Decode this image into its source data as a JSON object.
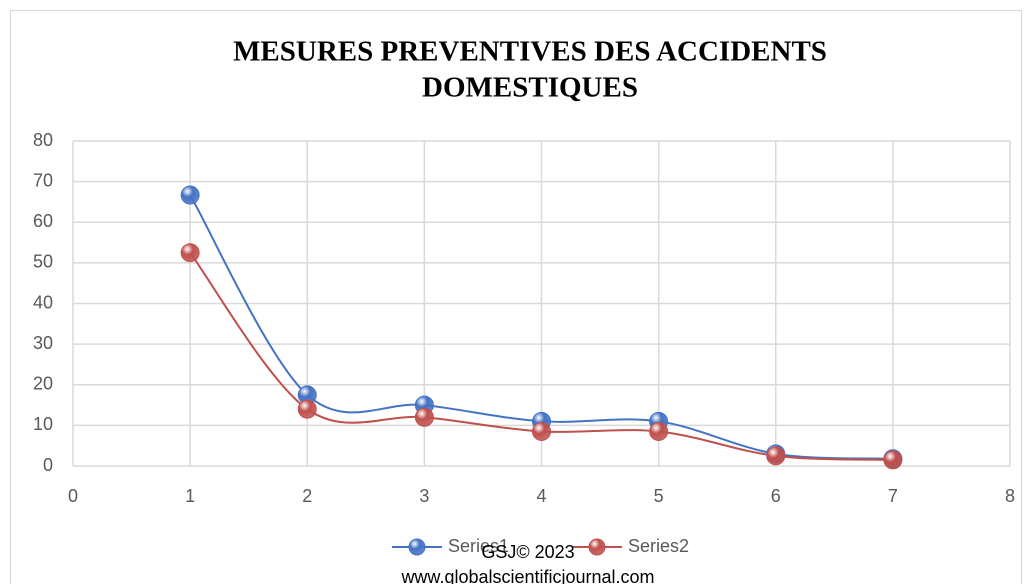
{
  "chart_data": {
    "type": "line",
    "title": [
      "MESURES PREVENTIVES DES ACCIDENTS",
      "DOMESTIQUES"
    ],
    "x": [
      1,
      2,
      3,
      4,
      5,
      6,
      7
    ],
    "series": [
      {
        "name": "Series1",
        "color": "#4472c4",
        "values": [
          66.7,
          17.5,
          15,
          11,
          11,
          3,
          1.8
        ]
      },
      {
        "name": "Series2",
        "color": "#c0504d",
        "values": [
          52.5,
          14,
          12,
          8.5,
          8.5,
          2.5,
          1.5
        ]
      }
    ],
    "xlim": [
      0,
      8
    ],
    "xticks": [
      0,
      1,
      2,
      3,
      4,
      5,
      6,
      7,
      8
    ],
    "ylim": [
      0,
      80
    ],
    "yticks": [
      0,
      10,
      20,
      30,
      40,
      50,
      60,
      70,
      80
    ],
    "grid": true,
    "legend": "bottom",
    "watermark": [
      "GSJ© 2023",
      "www.globalscientificjournal.com"
    ]
  }
}
